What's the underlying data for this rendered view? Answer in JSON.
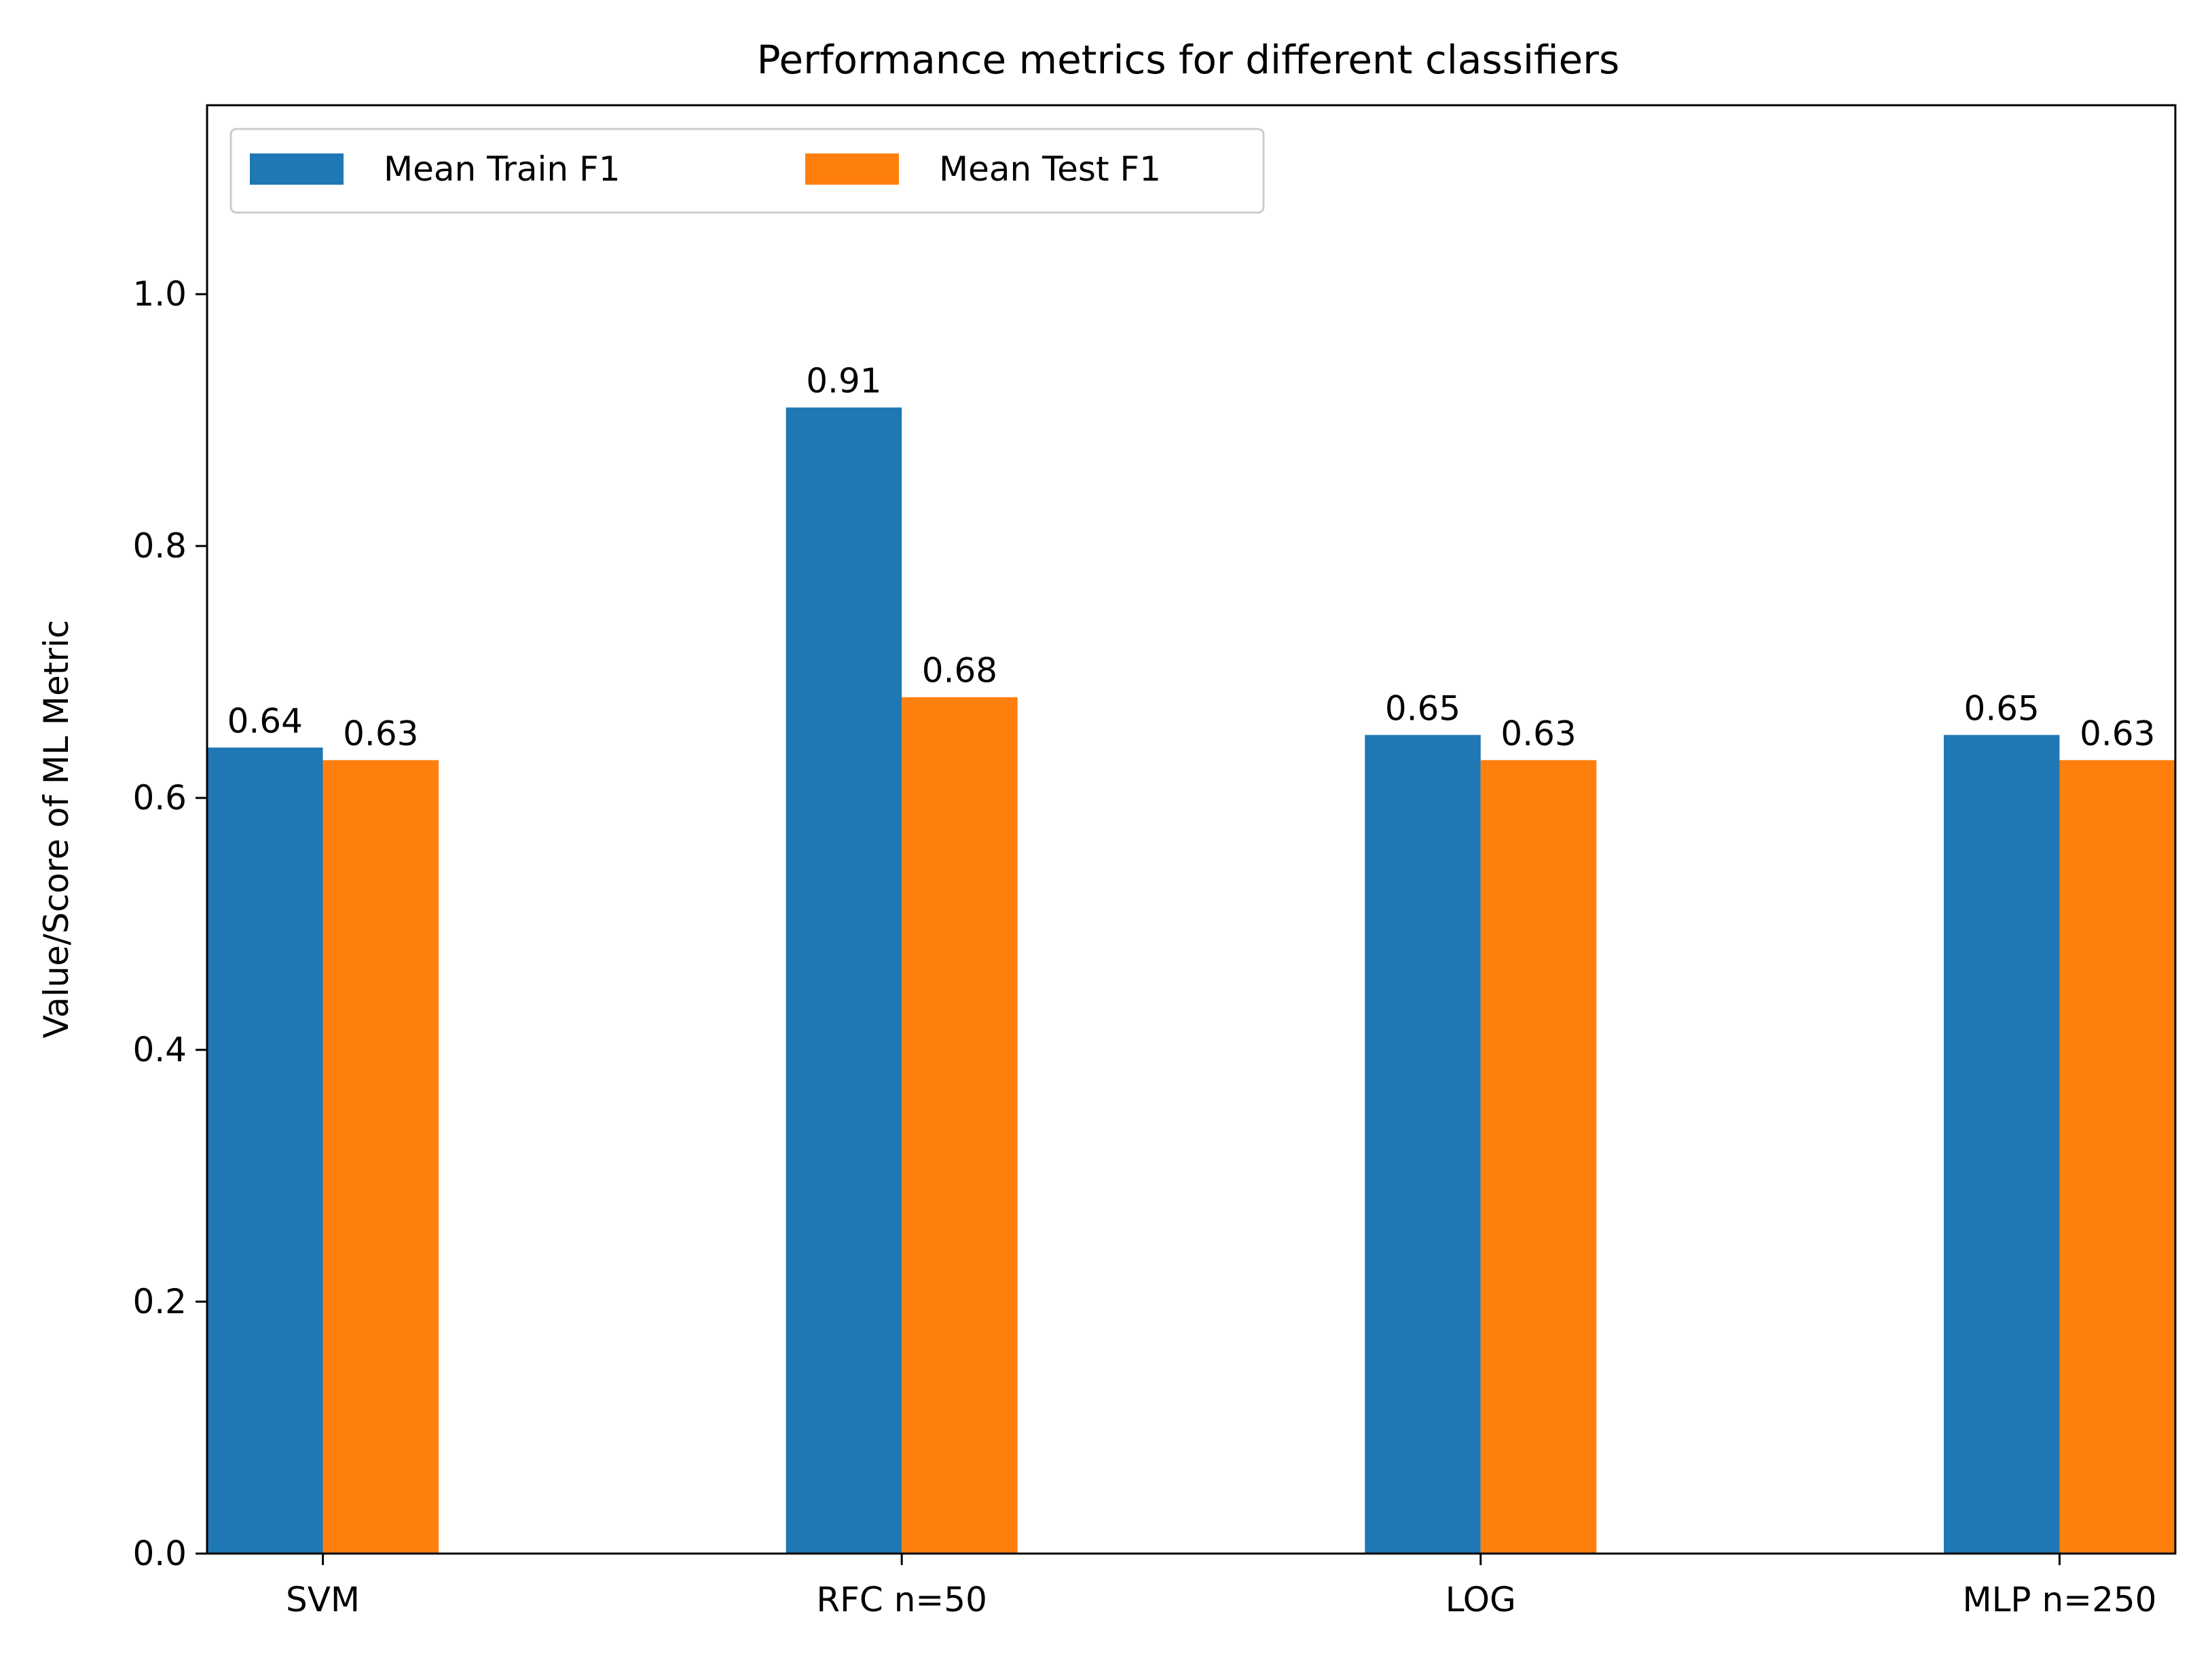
{
  "chart_data": {
    "type": "bar",
    "title": "Performance metrics for different classifiers",
    "xlabel": "",
    "ylabel": "Value/Score of ML Metric",
    "categories": [
      "SVM",
      "RFC n=50",
      "LOG",
      "MLP n=250"
    ],
    "series": [
      {
        "name": "Mean Train F1",
        "color": "#1f77b4",
        "values": [
          0.64,
          0.91,
          0.65,
          0.65
        ],
        "labels": [
          "0.64",
          "0.91",
          "0.65",
          "0.65"
        ]
      },
      {
        "name": "Mean Test F1",
        "color": "#ff7f0e",
        "values": [
          0.63,
          0.68,
          0.63,
          0.63
        ],
        "labels": [
          "0.63",
          "0.68",
          "0.63",
          "0.63"
        ]
      }
    ],
    "ylim": [
      0,
      1.15
    ],
    "yticks": [
      0.0,
      0.2,
      0.4,
      0.6,
      0.8,
      1.0
    ],
    "ytick_labels": [
      "0.0",
      "0.2",
      "0.4",
      "0.6",
      "0.8",
      "1.0"
    ],
    "grid": false,
    "legend_position": "upper-left",
    "legend_columns": 2
  }
}
